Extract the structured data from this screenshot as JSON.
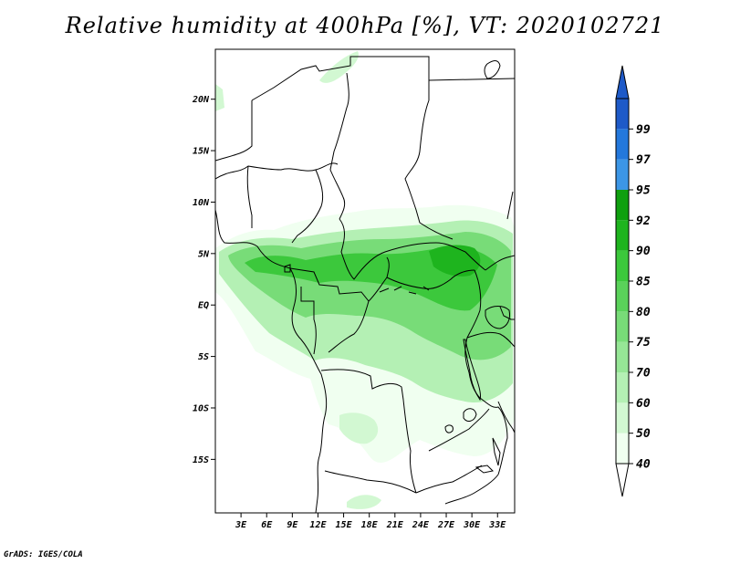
{
  "title": "Relative humidity at 400hPa [%], VT: 2020102721",
  "credit": "GrADS: IGES/COLA",
  "map": {
    "lat_range": [
      -20,
      25
    ],
    "lon_range": [
      0,
      35
    ],
    "y_ticks": [
      {
        "lat": 20,
        "label": "20N"
      },
      {
        "lat": 15,
        "label": "15N"
      },
      {
        "lat": 10,
        "label": "10N"
      },
      {
        "lat": 5,
        "label": "5N"
      },
      {
        "lat": 0,
        "label": "EQ"
      },
      {
        "lat": -5,
        "label": "5S"
      },
      {
        "lat": -10,
        "label": "10S"
      },
      {
        "lat": -15,
        "label": "15S"
      }
    ],
    "x_ticks": [
      {
        "lon": 3,
        "label": "3E"
      },
      {
        "lon": 6,
        "label": "6E"
      },
      {
        "lon": 9,
        "label": "9E"
      },
      {
        "lon": 12,
        "label": "12E"
      },
      {
        "lon": 15,
        "label": "15E"
      },
      {
        "lon": 18,
        "label": "18E"
      },
      {
        "lon": 21,
        "label": "21E"
      },
      {
        "lon": 24,
        "label": "24E"
      },
      {
        "lon": 27,
        "label": "27E"
      },
      {
        "lon": 30,
        "label": "30E"
      },
      {
        "lon": 33,
        "label": "33E"
      }
    ]
  },
  "colorbar": {
    "levels": [
      "40",
      "50",
      "60",
      "70",
      "75",
      "80",
      "85",
      "90",
      "92",
      "95",
      "97",
      "99"
    ],
    "colors": [
      "#f0fff0",
      "#d2f8d2",
      "#b4f0b4",
      "#96e696",
      "#78dc78",
      "#5ad25a",
      "#3cc83c",
      "#1eb41e",
      "#0fa00f",
      "#3c96e6",
      "#2378dc",
      "#1e5ac8"
    ]
  }
}
